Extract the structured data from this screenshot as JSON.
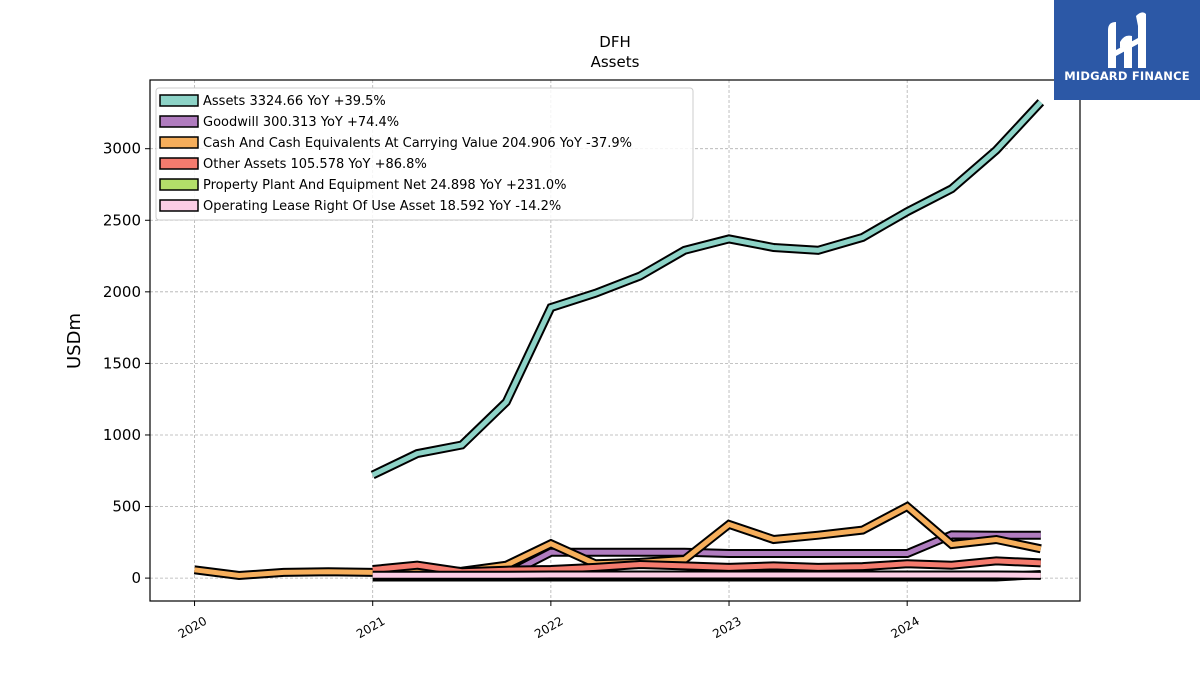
{
  "logo": {
    "text": "MIDGARD FINANCE"
  },
  "colors": {
    "Assets": "#8dd3c7",
    "Goodwill": "#b07cbf",
    "Cash And Cash Equivalents At Carrying Value": "#f6ae5b",
    "Other Assets": "#f47b6e",
    "Property Plant And Equipment Net": "#b3de69",
    "Operating Lease Right Of Use Asset": "#fccde5"
  },
  "chart_data": {
    "type": "line",
    "title": "DFH",
    "subtitle": "Assets",
    "ylabel": "USDm",
    "xlabel": "",
    "xlim": [
      2019.75,
      2024.97
    ],
    "ylim": [
      -160,
      3480
    ],
    "grid": true,
    "legend_position": "top-left",
    "xticks": [
      2020,
      2021,
      2022,
      2023,
      2024
    ],
    "xtick_labels": [
      "2020",
      "2021",
      "2022",
      "2023",
      "2024"
    ],
    "yticks": [
      0,
      500,
      1000,
      1500,
      2000,
      2500,
      3000
    ],
    "ytick_labels": [
      "0",
      "500",
      "1000",
      "1500",
      "2000",
      "2500",
      "3000"
    ],
    "series": [
      {
        "name": "Assets",
        "legend": "Assets  3324.66 YoY +39.5%",
        "x": [
          2021.0,
          2021.25,
          2021.5,
          2021.75,
          2022.0,
          2022.25,
          2022.5,
          2022.75,
          2023.0,
          2023.25,
          2023.5,
          2023.75,
          2024.0,
          2024.25,
          2024.5,
          2024.75
        ],
        "values": [
          720,
          870,
          930,
          1230,
          1890,
          1990,
          2110,
          2290,
          2370,
          2310,
          2290,
          2380,
          2560,
          2720,
          2990,
          3325
        ]
      },
      {
        "name": "Goodwill",
        "legend": "Goodwill  300.313 YoY +74.4%",
        "x": [
          2021.75,
          2022.0,
          2022.25,
          2022.5,
          2022.75,
          2023.0,
          2023.25,
          2023.5,
          2023.75,
          2024.0,
          2024.25,
          2024.5,
          2024.75
        ],
        "values": [
          20,
          180,
          180,
          180,
          180,
          172,
          172,
          172,
          172,
          172,
          302,
          300,
          300
        ]
      },
      {
        "name": "Cash And Cash Equivalents At Carrying Value",
        "legend": "Cash And Cash Equivalents At Carrying Value  204.906 YoY -37.9%",
        "x": [
          2020.0,
          2020.25,
          2020.5,
          2020.75,
          2021.0,
          2021.25,
          2021.5,
          2021.75,
          2022.0,
          2022.25,
          2022.5,
          2022.75,
          2023.0,
          2023.25,
          2023.5,
          2023.75,
          2024.0,
          2024.25,
          2024.5,
          2024.75
        ],
        "values": [
          58,
          18,
          40,
          45,
          40,
          42,
          48,
          90,
          240,
          100,
          110,
          130,
          375,
          270,
          300,
          335,
          500,
          235,
          270,
          205
        ]
      },
      {
        "name": "Other Assets",
        "legend": "Other Assets  105.578 YoY +86.8%",
        "x": [
          2021.0,
          2021.25,
          2021.5,
          2021.75,
          2022.0,
          2022.25,
          2022.5,
          2022.75,
          2023.0,
          2023.25,
          2023.5,
          2023.75,
          2024.0,
          2024.25,
          2024.5,
          2024.75
        ],
        "values": [
          60,
          90,
          45,
          55,
          60,
          75,
          95,
          85,
          75,
          85,
          75,
          80,
          100,
          90,
          120,
          106
        ]
      },
      {
        "name": "Property Plant And Equipment Net",
        "legend": "Property Plant And Equipment Net  24.898 YoY +231.0%",
        "x": [
          2021.0,
          2021.25,
          2021.5,
          2021.75,
          2022.0,
          2022.25,
          2022.5,
          2022.75,
          2023.0,
          2023.25,
          2023.5,
          2023.75,
          2024.0,
          2024.25,
          2024.5,
          2024.75
        ],
        "values": [
          8,
          8,
          8,
          8,
          8,
          8,
          8,
          8,
          8,
          8,
          8,
          8,
          8,
          8,
          8,
          25
        ]
      },
      {
        "name": "Operating Lease Right Of Use Asset",
        "legend": "Operating Lease Right Of Use Asset  18.592 YoY -14.2%",
        "x": [
          2021.0,
          2021.25,
          2021.5,
          2021.75,
          2022.0,
          2022.25,
          2022.5,
          2022.75,
          2023.0,
          2023.25,
          2023.5,
          2023.75,
          2024.0,
          2024.25,
          2024.5,
          2024.75
        ],
        "values": [
          20,
          20,
          20,
          20,
          22,
          22,
          22,
          22,
          22,
          22,
          22,
          22,
          22,
          22,
          22,
          19
        ]
      }
    ]
  }
}
